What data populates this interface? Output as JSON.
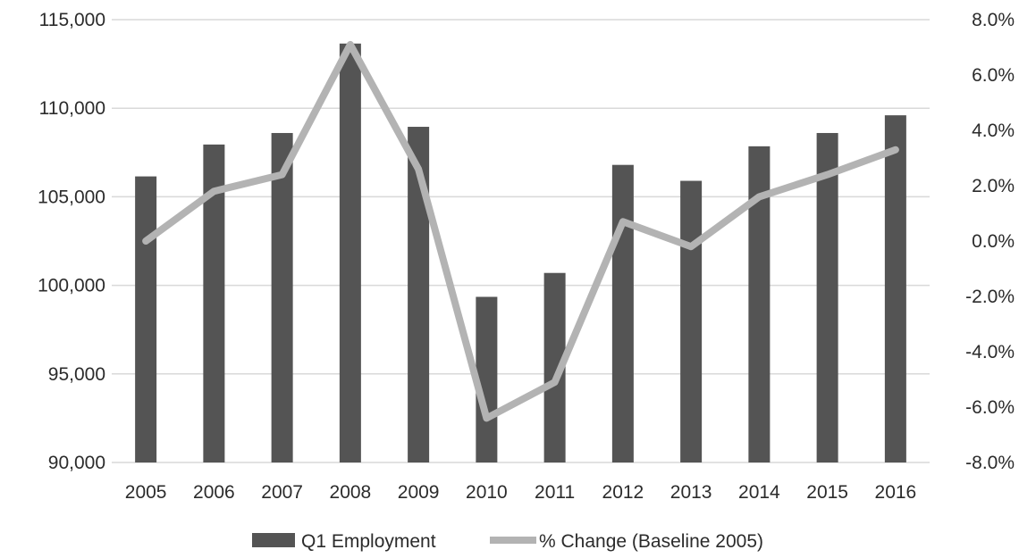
{
  "chart_data": {
    "type": "bar",
    "categories": [
      "2005",
      "2006",
      "2007",
      "2008",
      "2009",
      "2010",
      "2011",
      "2012",
      "2013",
      "2014",
      "2015",
      "2016"
    ],
    "series": [
      {
        "name": "Q1 Employment",
        "type": "bar",
        "axis": "left",
        "color": "#545454",
        "values": [
          106150,
          107950,
          108600,
          113650,
          108950,
          99350,
          100700,
          106800,
          105900,
          107850,
          108600,
          109600
        ]
      },
      {
        "name": "% Change (Baseline 2005)",
        "type": "line",
        "axis": "right",
        "color": "#b3b3b3",
        "values": [
          0.0,
          1.8,
          2.4,
          7.1,
          2.6,
          -6.4,
          -5.1,
          0.7,
          -0.2,
          1.6,
          2.4,
          3.3
        ]
      }
    ],
    "y_left": {
      "ylim": [
        90000,
        115000
      ],
      "ticks": [
        "90,000",
        "95,000",
        "100,000",
        "105,000",
        "110,000",
        "115,000"
      ]
    },
    "y_right": {
      "ylim": [
        -8.0,
        8.0
      ],
      "ticks": [
        "-8.0%",
        "-6.0%",
        "-4.0%",
        "-2.0%",
        "0.0%",
        "2.0%",
        "4.0%",
        "6.0%",
        "8.0%"
      ]
    },
    "grid": true,
    "legend_position": "bottom"
  }
}
